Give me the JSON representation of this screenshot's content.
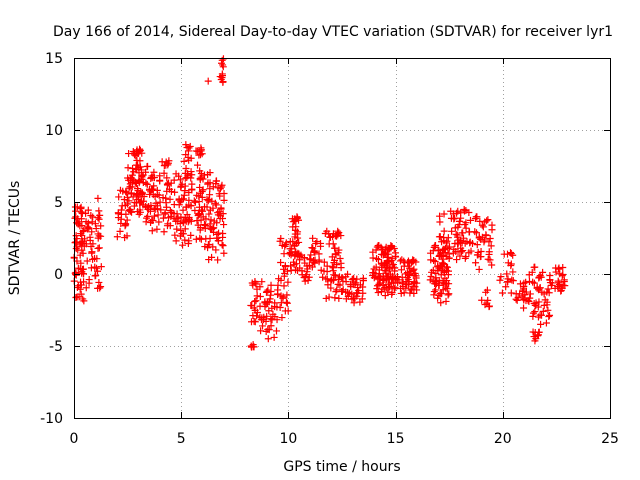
{
  "chart_data": {
    "type": "scatter",
    "title": "Day 166 of 2014, Sidereal Day-to-day VTEC variation (SDTVAR) for receiver lyr1",
    "xlabel": "GPS time / hours",
    "ylabel": "SDTVAR / TECUs",
    "xlim": [
      0,
      25
    ],
    "ylim": [
      -10,
      15
    ],
    "xticks": [
      "0",
      "5",
      "10",
      "15",
      "20",
      "25"
    ],
    "yticks": [
      "-10",
      "-5",
      "0",
      "5",
      "10",
      "15"
    ],
    "grid": true,
    "marker": "plus",
    "color": "#ff0000",
    "clusters": [
      {
        "x_range": [
          0.0,
          0.5
        ],
        "y_range": [
          -2.0,
          5.0
        ],
        "count": 70
      },
      {
        "x_range": [
          0.5,
          1.2
        ],
        "y_range": [
          -1.0,
          4.5
        ],
        "count": 40
      },
      {
        "x_range": [
          1.1,
          1.3
        ],
        "y_range": [
          -1.0,
          5.5
        ],
        "count": 10
      },
      {
        "x_range": [
          2.0,
          2.5
        ],
        "y_range": [
          2.5,
          6.0
        ],
        "count": 25
      },
      {
        "x_range": [
          2.5,
          3.2
        ],
        "y_range": [
          4.0,
          8.7
        ],
        "count": 80
      },
      {
        "x_range": [
          3.2,
          4.0
        ],
        "y_range": [
          3.0,
          7.5
        ],
        "count": 55
      },
      {
        "x_range": [
          4.0,
          4.5
        ],
        "y_range": [
          2.5,
          8.0
        ],
        "count": 30
      },
      {
        "x_range": [
          4.5,
          5.5
        ],
        "y_range": [
          2.0,
          7.0
        ],
        "count": 70
      },
      {
        "x_range": [
          5.1,
          5.5
        ],
        "y_range": [
          6.5,
          9.0
        ],
        "count": 15
      },
      {
        "x_range": [
          5.6,
          6.0
        ],
        "y_range": [
          2.0,
          8.8
        ],
        "count": 40
      },
      {
        "x_range": [
          6.0,
          6.5
        ],
        "y_range": [
          1.0,
          7.5
        ],
        "count": 40
      },
      {
        "x_range": [
          6.5,
          7.0
        ],
        "y_range": [
          0.5,
          6.5
        ],
        "count": 40
      },
      {
        "x_range": [
          6.8,
          7.0
        ],
        "y_range": [
          13.0,
          15.0
        ],
        "count": 12
      },
      {
        "x_range": [
          6.2,
          6.3
        ],
        "y_range": [
          13.2,
          13.4
        ],
        "count": 1
      },
      {
        "x_range": [
          8.1,
          8.4
        ],
        "y_range": [
          -5.2,
          -4.8
        ],
        "count": 6
      },
      {
        "x_range": [
          8.2,
          8.5
        ],
        "y_range": [
          -3.5,
          -0.5
        ],
        "count": 15
      },
      {
        "x_range": [
          8.5,
          9.5
        ],
        "y_range": [
          -4.5,
          -0.5
        ],
        "count": 50
      },
      {
        "x_range": [
          9.5,
          10.0
        ],
        "y_range": [
          -3.5,
          2.5
        ],
        "count": 30
      },
      {
        "x_range": [
          10.0,
          10.5
        ],
        "y_range": [
          0.0,
          4.0
        ],
        "count": 45
      },
      {
        "x_range": [
          10.5,
          11.0
        ],
        "y_range": [
          -0.5,
          1.5
        ],
        "count": 20
      },
      {
        "x_range": [
          11.0,
          11.5
        ],
        "y_range": [
          0.0,
          2.5
        ],
        "count": 20
      },
      {
        "x_range": [
          11.5,
          12.5
        ],
        "y_range": [
          -2.0,
          3.0
        ],
        "count": 60
      },
      {
        "x_range": [
          12.5,
          13.5
        ],
        "y_range": [
          -2.0,
          0.0
        ],
        "count": 40
      },
      {
        "x_range": [
          13.9,
          15.0
        ],
        "y_range": [
          -1.5,
          2.0
        ],
        "count": 110
      },
      {
        "x_range": [
          15.0,
          16.0
        ],
        "y_range": [
          -1.5,
          1.0
        ],
        "count": 60
      },
      {
        "x_range": [
          16.6,
          17.5
        ],
        "y_range": [
          -2.0,
          2.0
        ],
        "count": 80
      },
      {
        "x_range": [
          17.0,
          18.5
        ],
        "y_range": [
          1.0,
          4.5
        ],
        "count": 70
      },
      {
        "x_range": [
          18.5,
          19.5
        ],
        "y_range": [
          0.0,
          4.0
        ],
        "count": 40
      },
      {
        "x_range": [
          19.0,
          19.5
        ],
        "y_range": [
          -2.5,
          -1.0
        ],
        "count": 8
      },
      {
        "x_range": [
          19.8,
          20.5
        ],
        "y_range": [
          -1.5,
          1.5
        ],
        "count": 20
      },
      {
        "x_range": [
          20.5,
          21.2
        ],
        "y_range": [
          -2.5,
          -0.5
        ],
        "count": 20
      },
      {
        "x_range": [
          21.2,
          22.2
        ],
        "y_range": [
          -3.5,
          0.5
        ],
        "count": 50
      },
      {
        "x_range": [
          21.3,
          21.8
        ],
        "y_range": [
          -4.7,
          -4.0
        ],
        "count": 10
      },
      {
        "x_range": [
          22.2,
          22.9
        ],
        "y_range": [
          -1.5,
          0.5
        ],
        "count": 25
      }
    ]
  }
}
